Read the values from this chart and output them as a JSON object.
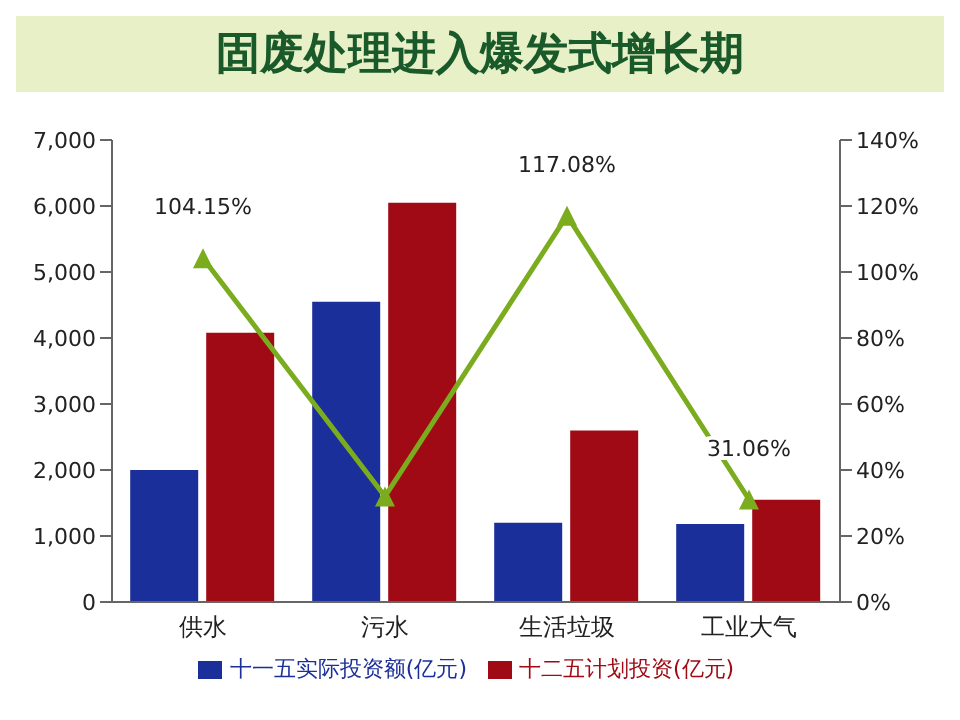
{
  "chart_data": {
    "type": "bar",
    "title": "固废处理进入爆发式增长期",
    "categories": [
      "供水",
      "污水",
      "生活垃圾",
      "工业大气"
    ],
    "series": [
      {
        "name": "十一五实际投资额(亿元)",
        "color": "#1a2f9a",
        "values": [
          2000,
          4550,
          1200,
          1180
        ]
      },
      {
        "name": "十二五计划投资(亿元)",
        "color": "#a00a14",
        "values": [
          4080,
          6050,
          2600,
          1550
        ]
      },
      {
        "type": "line",
        "axis": "y2",
        "color": "#7aac1e",
        "marker": "triangle",
        "values": [
          104.15,
          32,
          117.08,
          31.06
        ],
        "value_labels": [
          "104.15%",
          null,
          "117.08%",
          "31.06%"
        ]
      }
    ],
    "ylim": [
      0,
      7000
    ],
    "yticks": [
      {
        "value": 0,
        "label": "0"
      },
      {
        "value": 1000,
        "label": "1,000"
      },
      {
        "value": 2000,
        "label": "2,000"
      },
      {
        "value": 3000,
        "label": "3,000"
      },
      {
        "value": 4000,
        "label": "4,000"
      },
      {
        "value": 5000,
        "label": "5,000"
      },
      {
        "value": 6000,
        "label": "6,000"
      },
      {
        "value": 7000,
        "label": "7,000"
      }
    ],
    "y2lim": [
      0,
      140
    ],
    "y2ticks": [
      {
        "value": 0,
        "label": "0%"
      },
      {
        "value": 20,
        "label": "20%"
      },
      {
        "value": 40,
        "label": "40%"
      },
      {
        "value": 60,
        "label": "60%"
      },
      {
        "value": 80,
        "label": "80%"
      },
      {
        "value": 100,
        "label": "100%"
      },
      {
        "value": 120,
        "label": "120%"
      },
      {
        "value": 140,
        "label": "140%"
      }
    ],
    "grid": false,
    "legend": "bottom"
  }
}
